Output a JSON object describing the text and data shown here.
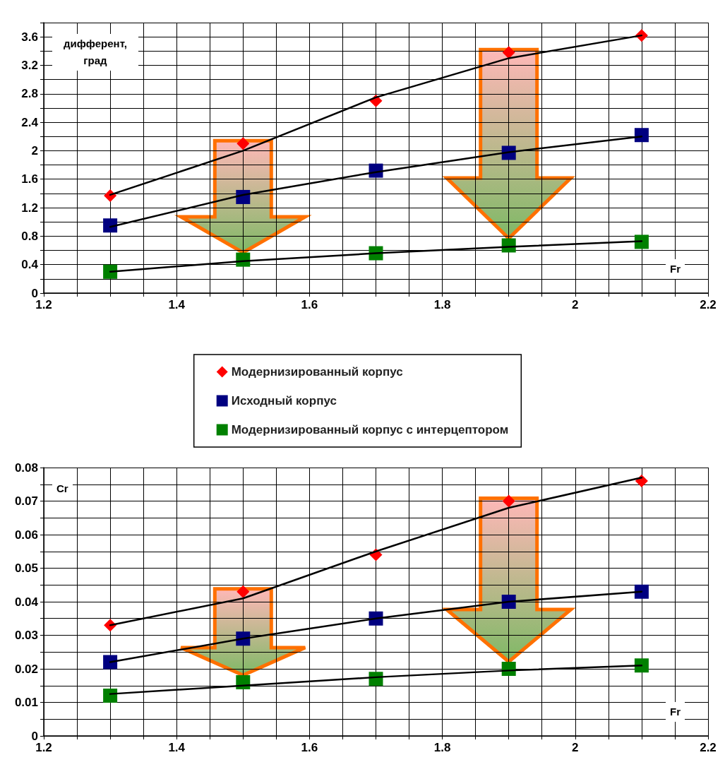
{
  "chart_data": [
    {
      "type": "scatter",
      "xlabel": "Fr",
      "ylabel": "дифферент, град",
      "x": [
        1.3,
        1.5,
        1.7,
        1.9,
        2.1
      ],
      "series": [
        {
          "name": "Модернизированный корпус",
          "color": "#ff0000",
          "marker": "diamond",
          "values": [
            1.37,
            2.1,
            2.7,
            3.38,
            3.62
          ]
        },
        {
          "name": "Исходный корпус",
          "color": "#000080",
          "marker": "square",
          "values": [
            0.95,
            1.35,
            1.72,
            1.97,
            2.22
          ]
        },
        {
          "name": "Модернизированный корпус с интерцептором",
          "color": "#008000",
          "marker": "square",
          "values": [
            0.3,
            0.47,
            0.56,
            0.67,
            0.72
          ]
        },
        {
          "type": "line",
          "color": "#000000",
          "marker": "none",
          "line_style": "solid",
          "values": [
            1.38,
            2.0,
            2.75,
            3.3,
            3.62
          ]
        },
        {
          "type": "line",
          "color": "#000000",
          "marker": "none",
          "line_style": "solid",
          "values": [
            0.93,
            1.38,
            1.7,
            1.98,
            2.2
          ]
        },
        {
          "type": "line",
          "color": "#000000",
          "marker": "none",
          "line_style": "solid",
          "values": [
            0.3,
            0.45,
            0.56,
            0.65,
            0.73
          ]
        }
      ],
      "xlim": [
        1.2,
        2.2
      ],
      "xticks": [
        1.2,
        {
          "value": 1.25,
          "label": null
        },
        {
          "value": 1.3,
          "label": null
        },
        {
          "value": 1.35,
          "label": null
        },
        1.4,
        {
          "value": 1.45,
          "label": null
        },
        {
          "value": 1.5,
          "label": null
        },
        {
          "value": 1.55,
          "label": null
        },
        1.6,
        {
          "value": 1.65,
          "label": null
        },
        {
          "value": 1.7,
          "label": null
        },
        {
          "value": 1.75,
          "label": null
        },
        1.8,
        {
          "value": 1.85,
          "label": null
        },
        {
          "value": 1.9,
          "label": null
        },
        {
          "value": 1.95,
          "label": null
        },
        2,
        {
          "value": 2.05,
          "label": null
        },
        {
          "value": 2.1,
          "label": null
        },
        {
          "value": 2.15,
          "label": null
        },
        2.2
      ],
      "ylim": [
        0,
        3.8
      ],
      "yticks": [
        0,
        {
          "value": 0.2,
          "label": null
        },
        0.4,
        {
          "value": 0.6,
          "label": null
        },
        0.8,
        {
          "value": 1.0,
          "label": null
        },
        1.2,
        {
          "value": 1.4,
          "label": null
        },
        1.6,
        {
          "value": 1.8,
          "label": null
        },
        2,
        {
          "value": 2.2,
          "label": null
        },
        2.4,
        {
          "value": 2.6,
          "label": null
        },
        2.8,
        {
          "value": 3.0,
          "label": null
        },
        3.2,
        {
          "value": 3.4,
          "label": null
        },
        3.6,
        {
          "value": 3.8,
          "label": null
        }
      ],
      "grid": true,
      "legend": "bottom"
    },
    {
      "type": "scatter",
      "xlabel": "Fr",
      "ylabel": "Cr",
      "x": [
        1.3,
        1.5,
        1.7,
        1.9,
        2.1
      ],
      "series": [
        {
          "color": "#ff0000",
          "marker": "diamond",
          "values": [
            0.033,
            0.043,
            0.054,
            0.07,
            0.076
          ]
        },
        {
          "color": "#000080",
          "marker": "square",
          "values": [
            0.022,
            0.029,
            0.035,
            0.04,
            0.043
          ]
        },
        {
          "color": "#008000",
          "marker": "square",
          "values": [
            0.012,
            0.016,
            0.017,
            0.02,
            0.021
          ]
        },
        {
          "type": "line",
          "color": "#000000",
          "marker": "none",
          "line_style": "solid",
          "values": [
            0.033,
            0.041,
            0.055,
            0.068,
            0.077
          ]
        },
        {
          "type": "line",
          "color": "#000000",
          "marker": "none",
          "line_style": "solid",
          "values": [
            0.022,
            0.029,
            0.035,
            0.04,
            0.043
          ]
        },
        {
          "type": "line",
          "color": "#000000",
          "marker": "none",
          "line_style": "solid",
          "values": [
            0.0125,
            0.015,
            0.0175,
            0.0195,
            0.021
          ]
        }
      ],
      "xlim": [
        1.2,
        2.2
      ],
      "xticks": [
        1.2,
        {
          "value": 1.25,
          "label": null
        },
        {
          "value": 1.3,
          "label": null
        },
        {
          "value": 1.35,
          "label": null
        },
        1.4,
        {
          "value": 1.45,
          "label": null
        },
        {
          "value": 1.5,
          "label": null
        },
        {
          "value": 1.55,
          "label": null
        },
        1.6,
        {
          "value": 1.65,
          "label": null
        },
        {
          "value": 1.7,
          "label": null
        },
        {
          "value": 1.75,
          "label": null
        },
        1.8,
        {
          "value": 1.85,
          "label": null
        },
        {
          "value": 1.9,
          "label": null
        },
        {
          "value": 1.95,
          "label": null
        },
        2,
        {
          "value": 2.05,
          "label": null
        },
        {
          "value": 2.1,
          "label": null
        },
        {
          "value": 2.15,
          "label": null
        },
        2.2
      ],
      "ylim": [
        0,
        0.08
      ],
      "yticks": [
        0,
        {
          "value": 0.005,
          "label": null
        },
        0.01,
        {
          "value": 0.015,
          "label": null
        },
        0.02,
        {
          "value": 0.025,
          "label": null
        },
        0.03,
        {
          "value": 0.035,
          "label": null
        },
        0.04,
        {
          "value": 0.045,
          "label": null
        },
        0.05,
        {
          "value": 0.055,
          "label": null
        },
        0.06,
        {
          "value": 0.065,
          "label": null
        },
        0.07,
        {
          "value": 0.075,
          "label": null
        },
        0.08
      ],
      "grid": true
    }
  ]
}
